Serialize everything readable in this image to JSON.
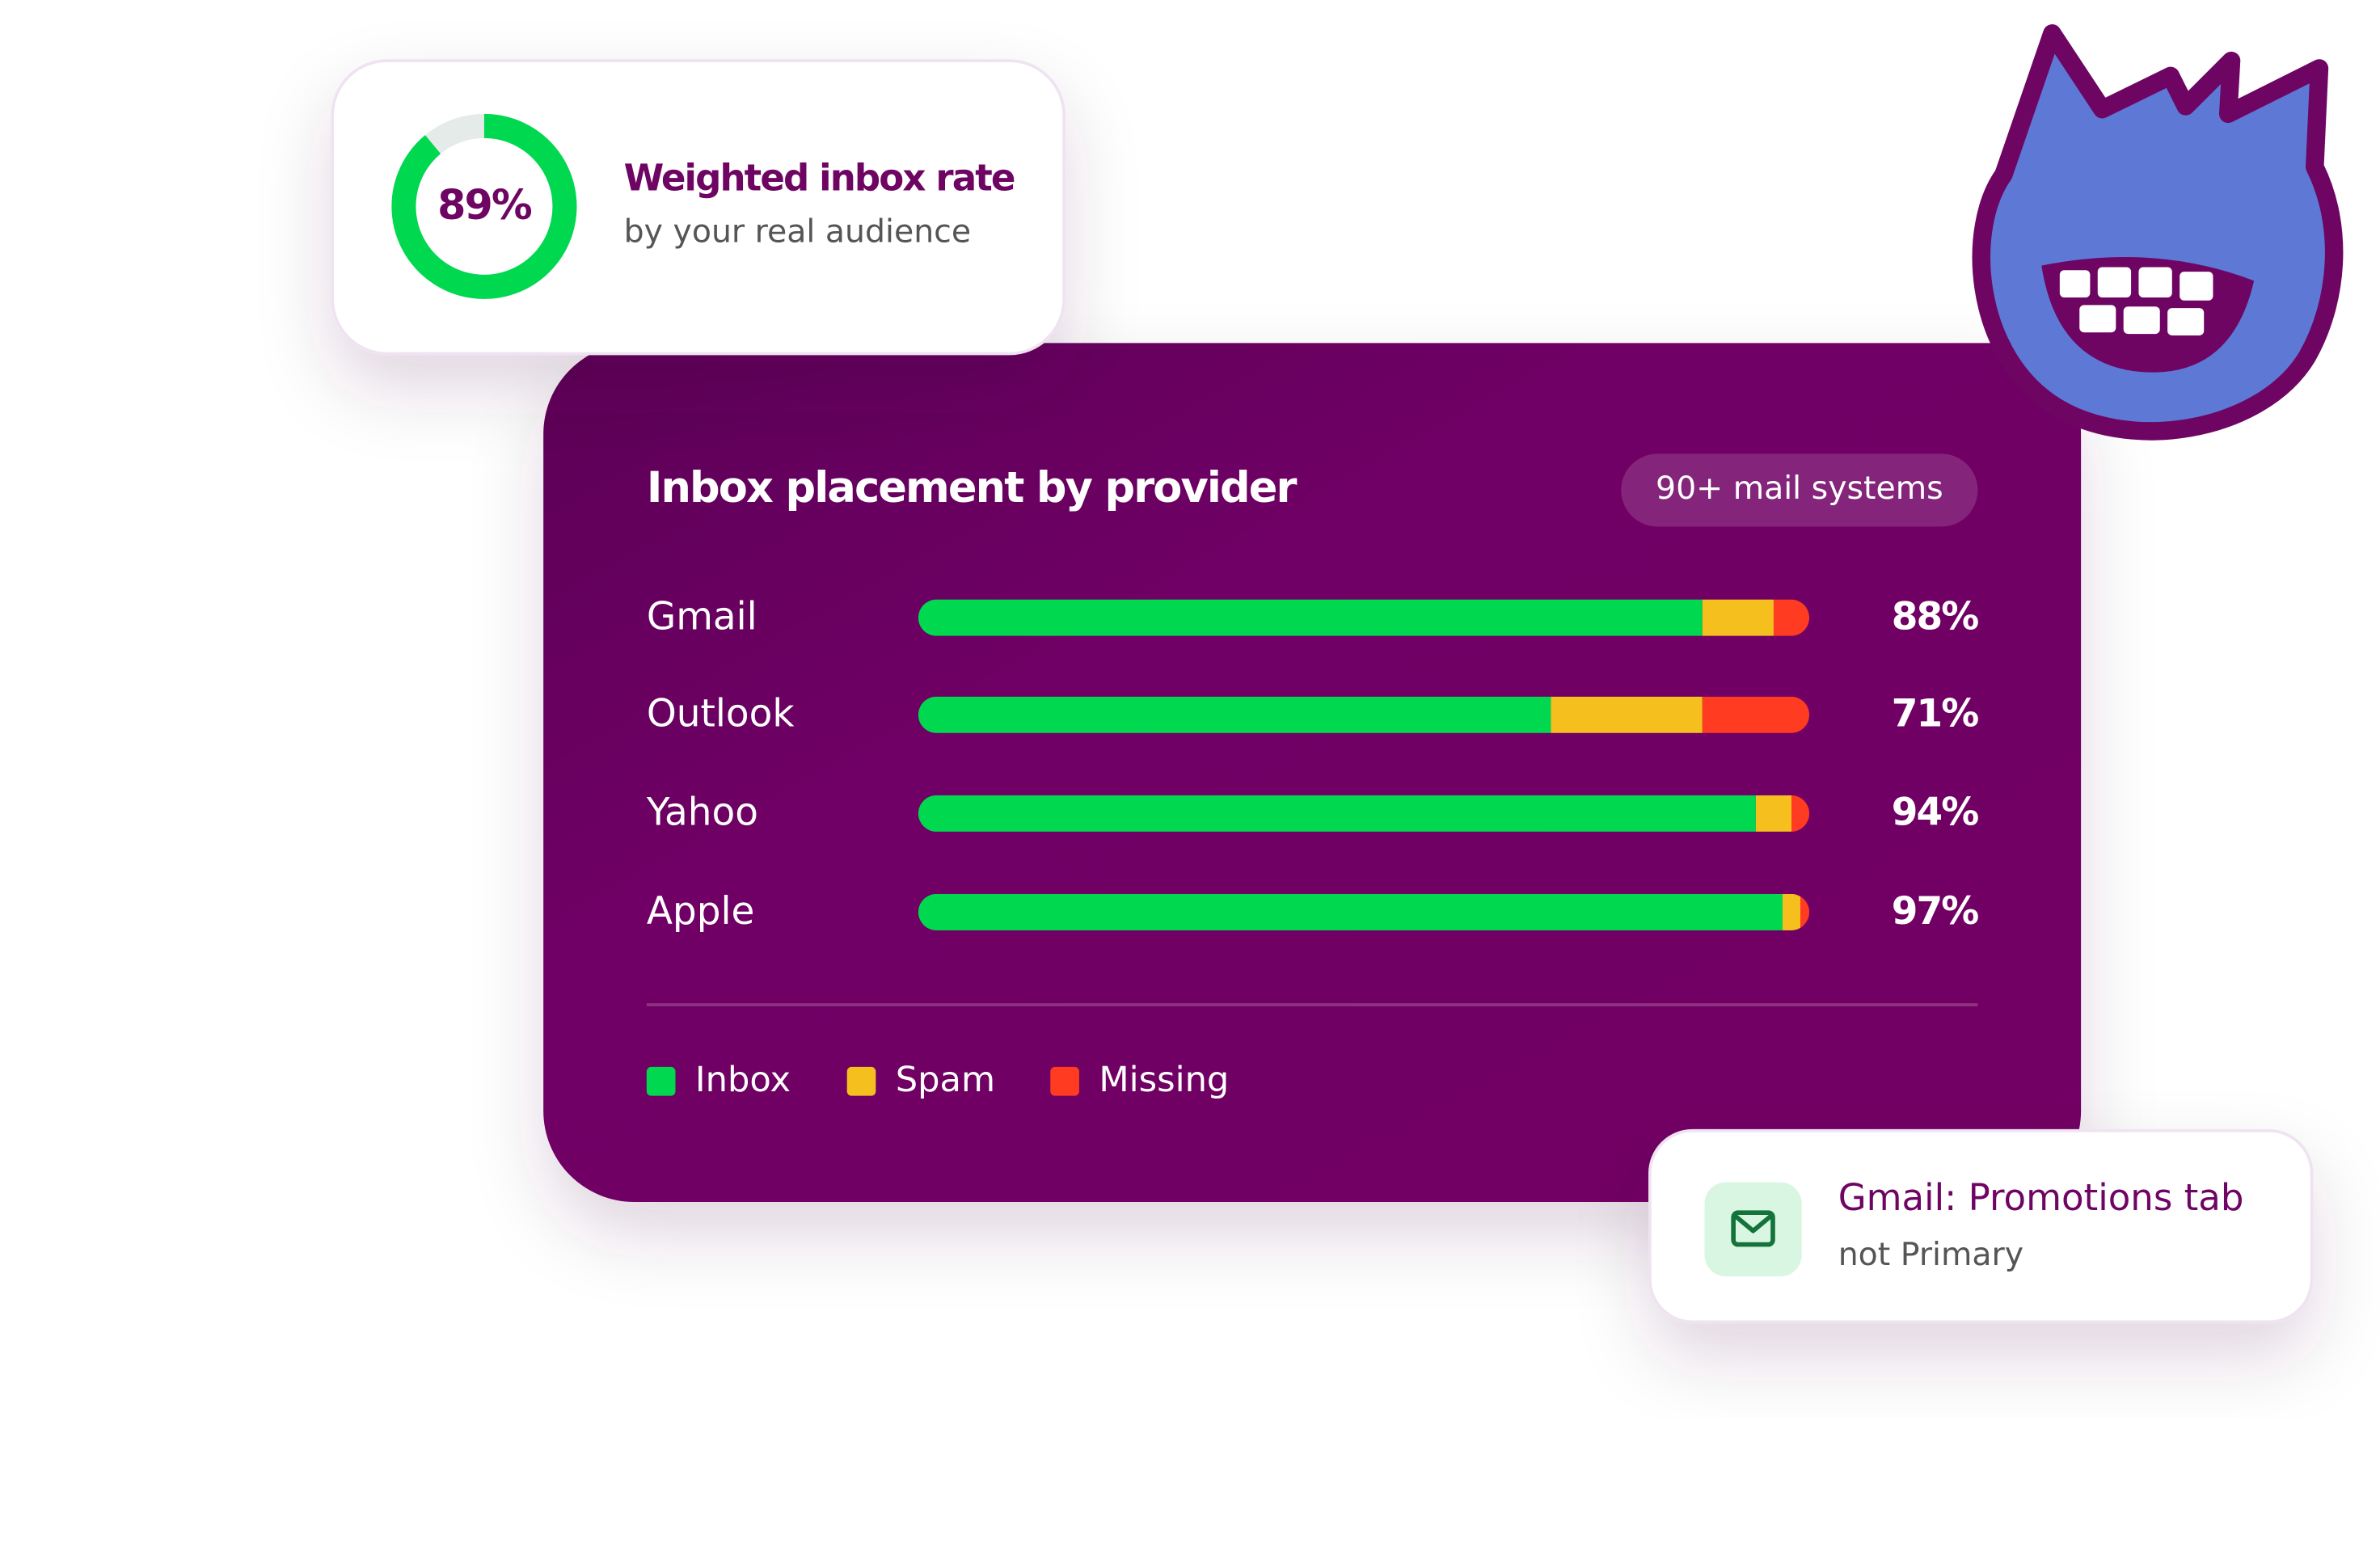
{
  "chart_data": [
    {
      "type": "donut",
      "title": "Weighted inbox rate",
      "subtitle": "by your real audience",
      "values": [
        89
      ],
      "value_labels": [
        "89%"
      ],
      "color": "#00d84f",
      "track_color": "#e4ebe8",
      "ylim": [
        0,
        100
      ]
    },
    {
      "type": "bar",
      "orientation": "horizontal",
      "stacked": true,
      "title": "Inbox placement by provider",
      "badge": "90+ mail systems",
      "categories": [
        "Gmail",
        "Outlook",
        "Yahoo",
        "Apple"
      ],
      "series": [
        {
          "name": "Inbox",
          "color": "#00d84f",
          "values": [
            88,
            71,
            94,
            97
          ],
          "value_labels": [
            "88%",
            "71%",
            "94%",
            "97%"
          ]
        },
        {
          "name": "Spam",
          "color": "#f5c01e",
          "values": [
            8,
            17,
            4,
            2
          ]
        },
        {
          "name": "Missing",
          "color": "#ff3b22",
          "values": [
            4,
            12,
            2,
            1
          ]
        }
      ],
      "xlim": [
        0,
        100
      ],
      "legend": "bottom-left"
    }
  ],
  "notification": {
    "title": "Gmail: Promotions tab",
    "subtitle": "not Primary"
  }
}
